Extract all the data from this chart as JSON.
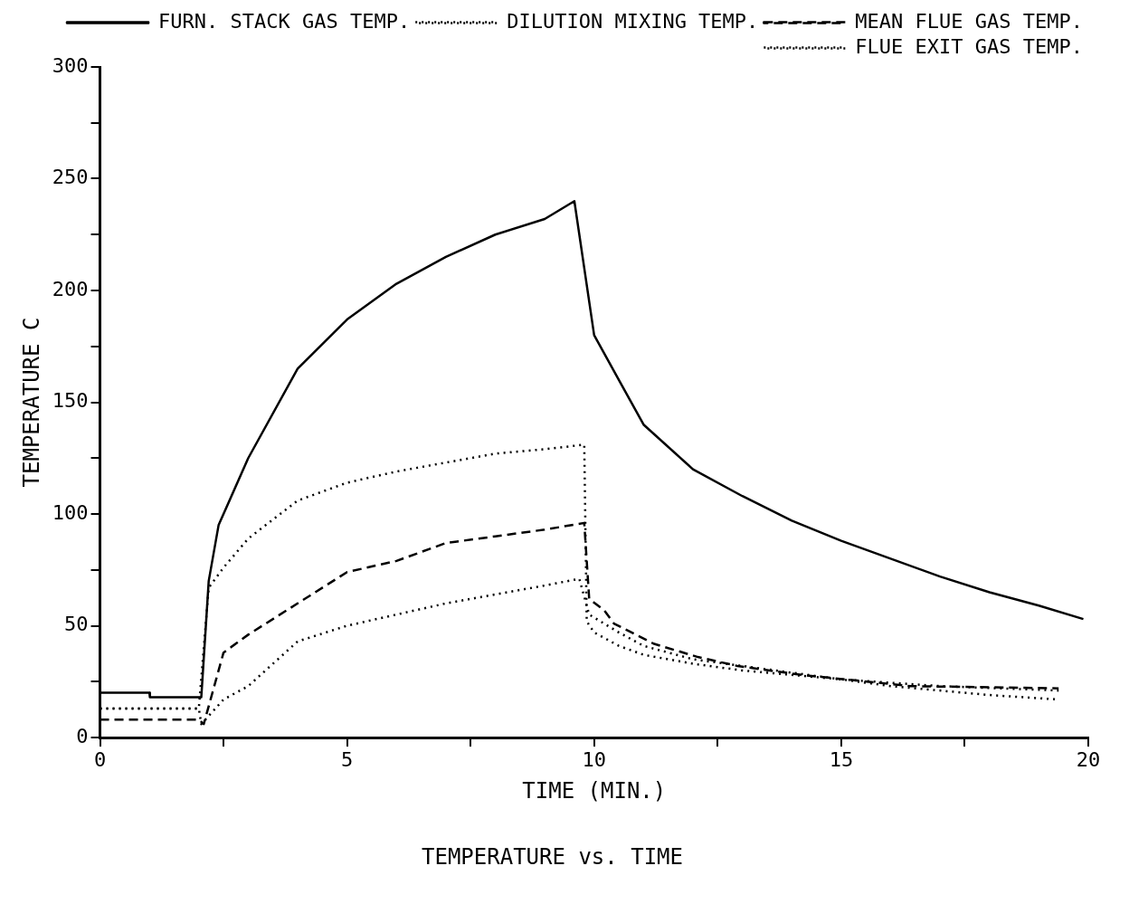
{
  "chart_data": {
    "type": "line",
    "title": "TEMPERATURE vs. TIME",
    "xlabel": "TIME (MIN.)",
    "ylabel": "TEMPERATURE C",
    "xlim": [
      0,
      20
    ],
    "ylim": [
      0,
      300
    ],
    "xticks": [
      0,
      {
        "value": 2.5,
        "label": null
      },
      5,
      {
        "value": 7.5,
        "label": null
      },
      10,
      {
        "value": 12.5,
        "label": null
      },
      15,
      {
        "value": 17.5,
        "label": null
      },
      20
    ],
    "yticks": [
      0,
      {
        "value": 25,
        "label": null
      },
      50,
      {
        "value": 75,
        "label": null
      },
      100,
      {
        "value": 125,
        "label": null
      },
      150,
      {
        "value": 175,
        "label": null
      },
      200,
      {
        "value": 225,
        "label": null
      },
      250,
      {
        "value": 275,
        "label": null
      },
      300
    ],
    "grid": false,
    "legend": "top right",
    "marker": "none",
    "series": [
      {
        "name": "FURN. STACK GAS TEMP.",
        "color": "#000000",
        "line_style": "solid",
        "x": [
          0,
          1,
          1.01,
          2.05,
          2.2,
          2.4,
          3,
          4,
          5,
          6,
          7,
          8,
          9,
          9.6,
          10.0,
          10.5,
          11,
          12,
          13,
          14,
          15,
          16,
          17,
          18,
          19,
          19.9
        ],
        "values": [
          20,
          20,
          18,
          18,
          70,
          95,
          125,
          165,
          187,
          203,
          215,
          225,
          232,
          240,
          180,
          160,
          140,
          120,
          108,
          97,
          88,
          80,
          72,
          65,
          59,
          53
        ]
      },
      {
        "name": "DILUTION MIXING TEMP.",
        "color": "#000000",
        "line_style": "dotted",
        "x": [
          0,
          2,
          2.2,
          2.5,
          3,
          4,
          5,
          6,
          7,
          8,
          9,
          9.8,
          9.85,
          10,
          10.5,
          11,
          12,
          13,
          15,
          17,
          19.4
        ],
        "values": [
          13,
          13,
          67,
          76,
          89,
          106,
          114,
          119,
          123,
          127,
          129,
          131,
          52,
          47,
          41,
          37,
          33,
          30,
          26,
          23,
          21
        ]
      },
      {
        "name": "MEAN FLUE GAS TEMP.",
        "color": "#000000",
        "line_style": "dashed",
        "x": [
          0,
          2,
          2.1,
          2.5,
          3,
          4,
          5,
          6,
          7,
          8,
          9,
          9.8,
          9.9,
          10.2,
          10.4,
          11.2,
          12.1,
          12.9,
          14.2,
          16.4,
          19.4
        ],
        "values": [
          8,
          8,
          6,
          38,
          46,
          60,
          74,
          79,
          87,
          90,
          93,
          96,
          62,
          57,
          51,
          42,
          36,
          32,
          28,
          23,
          22
        ]
      },
      {
        "name": "FLUE EXIT GAS TEMP.",
        "color": "#000000",
        "line_style": "dotted",
        "x": [
          0,
          2,
          2.05,
          2.5,
          3,
          4,
          5,
          6,
          7,
          8,
          9,
          9.7,
          9.9,
          10.5,
          11,
          12,
          14,
          16,
          18,
          19.4
        ],
        "values": [
          13,
          13,
          6,
          17,
          23,
          43,
          50,
          55,
          60,
          64,
          68,
          71,
          55,
          47,
          41,
          35,
          29,
          23,
          19,
          17
        ]
      }
    ]
  }
}
